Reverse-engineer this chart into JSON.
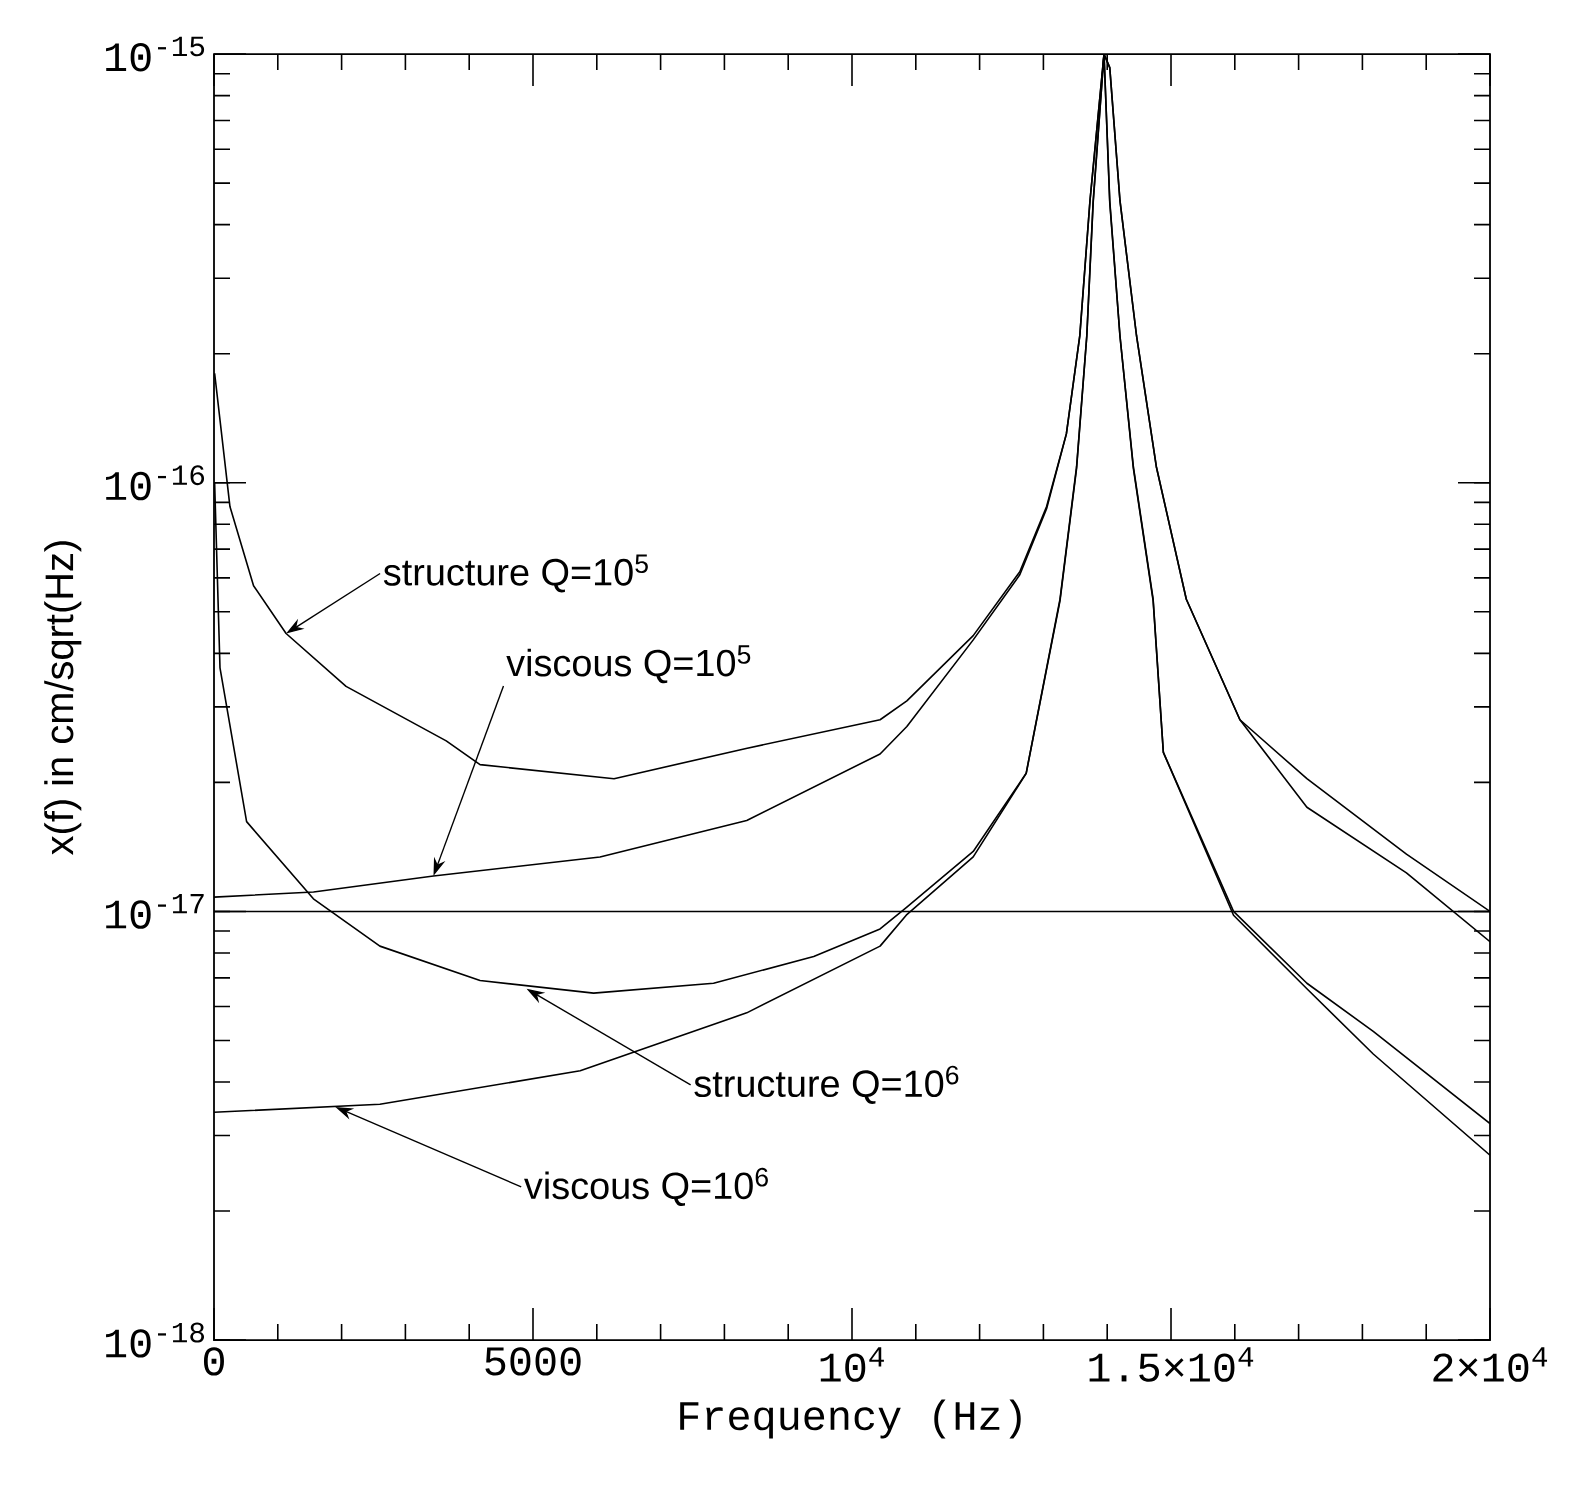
{
  "chart_data": {
    "type": "line",
    "xlabel": "Frequency (Hz)",
    "ylabel": "x(f) in cm/sqrt(Hz)",
    "log": "y",
    "marker": "none",
    "line_style": "solid",
    "xlim": [
      0,
      20000
    ],
    "ylim": [
      1e-18,
      1e-15
    ],
    "xticks": [
      0,
      5000,
      {
        "value": 10000,
        "label": "10$^{4}$"
      },
      {
        "value": 15000,
        "label": "1.5×10$^{4}$"
      },
      {
        "value": 20000,
        "label": "2×10$^{4}$"
      }
    ],
    "yticks": [
      {
        "value": 1e-18,
        "label": "10$^{-18}$"
      },
      {
        "value": 1e-17,
        "label": "10$^{-17}$"
      },
      {
        "value": 1e-16,
        "label": "10$^{-16}$"
      },
      {
        "value": 1e-15,
        "label": "10$^{-15}$"
      }
    ],
    "series": [
      {
        "color": "#000000",
        "x": [
          10,
          250,
          620,
          1130,
          2070,
          3640,
          4170,
          6270,
          8340,
          10440,
          10860,
          11900,
          12630,
          13050,
          13360,
          13570,
          13730,
          13950,
          14040,
          14200,
          14460,
          14770,
          15240,
          16080,
          17130,
          18690,
          20000
        ],
        "values": [
          1.8e-16,
          8.8e-17,
          5.75e-17,
          4.45e-17,
          3.35e-17,
          2.5e-17,
          2.2e-17,
          2.04e-17,
          2.4e-17,
          2.8e-17,
          3.1e-17,
          4.4e-17,
          6.2e-17,
          8.8e-17,
          1.3e-16,
          2.2e-16,
          4.55e-16,
          1e-15,
          9.3e-16,
          4.55e-16,
          2.2e-16,
          1.09e-16,
          5.35e-17,
          2.8e-17,
          1.75e-17,
          1.23e-17,
          8.5e-18
        ]
      },
      {
        "color": "#000000",
        "x": [
          0,
          1560,
          3440,
          6050,
          8350,
          10440,
          10860,
          11900,
          12630,
          13050,
          13360,
          13570,
          13730,
          13950,
          14040,
          14200,
          14460,
          14770,
          15240,
          16080,
          17130,
          18690,
          20000
        ],
        "values": [
          1.08e-17,
          1.11e-17,
          1.21e-17,
          1.34e-17,
          1.63e-17,
          2.33e-17,
          2.7e-17,
          4.3e-17,
          6.1e-17,
          8.7e-17,
          1.3e-16,
          2.2e-16,
          4.55e-16,
          1e-15,
          9.3e-16,
          4.55e-16,
          2.2e-16,
          1.09e-16,
          5.35e-17,
          2.8e-17,
          2.04e-17,
          1.36e-17,
          1e-17
        ]
      },
      {
        "color": "#000000",
        "x": [
          10,
          94,
          511,
          1558,
          2600,
          4170,
          5950,
          7830,
          9400,
          10440,
          10850,
          11900,
          12730,
          13260,
          13520,
          13680,
          13780,
          13950,
          14040,
          14200,
          14410,
          14720,
          14880,
          15980,
          17130,
          18170,
          20000
        ],
        "values": [
          1e-16,
          3.7e-17,
          1.62e-17,
          1.07e-17,
          8.3e-18,
          6.9e-18,
          6.45e-18,
          6.8e-18,
          7.85e-18,
          9.1e-18,
          1.02e-17,
          1.38e-17,
          2.1e-17,
          5.3e-17,
          1.08e-16,
          2.2e-16,
          4.5e-16,
          1e-15,
          4.5e-16,
          2.2e-16,
          1.08e-16,
          5.3e-17,
          2.35e-17,
          9.8e-18,
          6.6e-18,
          4.65e-18,
          2.7e-18
        ]
      },
      {
        "color": "#000000",
        "x": [
          0,
          2600,
          5740,
          8350,
          10440,
          10850,
          11900,
          12730,
          13260,
          13520,
          13680,
          13780,
          13950,
          14040,
          14200,
          14410,
          14720,
          14880,
          15980,
          17130,
          18170,
          20000
        ],
        "values": [
          3.4e-18,
          3.55e-18,
          4.25e-18,
          5.8e-18,
          8.3e-18,
          9.8e-18,
          1.34e-17,
          2.1e-17,
          5.35e-17,
          1.09e-16,
          2.2e-16,
          4.55e-16,
          1e-15,
          4.55e-16,
          2.2e-16,
          1.09e-16,
          5.35e-17,
          2.35e-17,
          1e-17,
          6.8e-18,
          5.25e-18,
          3.2e-18
        ]
      },
      {
        "color": "#000000",
        "x": [
          0,
          20000
        ],
        "values": [
          1e-17,
          1e-17
        ]
      }
    ],
    "annotations": [
      {
        "text": "structure Q=10$^{5}$",
        "x": 1130,
        "y": 4.45e-17
      },
      {
        "text": "viscous Q=10$^{5}$",
        "x": 3440,
        "y": 1.21e-17
      },
      {
        "text": "structure Q=10$^{6}$",
        "x": 4900,
        "y": 6.6e-18
      },
      {
        "text": "viscous Q=10$^{6}$",
        "x": 1900,
        "y": 3.5e-18
      }
    ]
  }
}
